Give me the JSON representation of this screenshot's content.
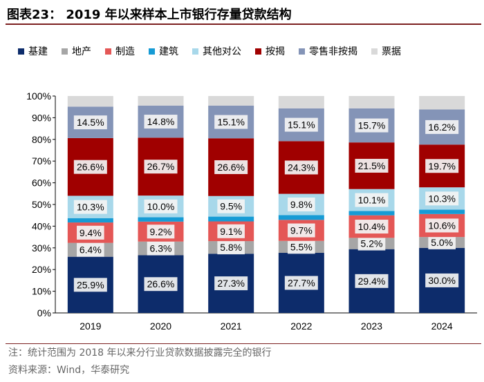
{
  "title": "图表23：  2019 年以来样本上市银行存量贷款结构",
  "note": "注：统计范围为 2018 年以来分行业贷款数据披露完全的银行",
  "source": "资料来源：Wind，华泰研究",
  "chart_data": {
    "type": "bar",
    "stacked": true,
    "categories": [
      "2019",
      "2020",
      "2021",
      "2022",
      "2023",
      "2024"
    ],
    "ylim": [
      0,
      100
    ],
    "yticks": [
      "0%",
      "10%",
      "20%",
      "30%",
      "40%",
      "50%",
      "60%",
      "70%",
      "80%",
      "90%",
      "100%"
    ],
    "legend_position": "top",
    "series": [
      {
        "name": "基建",
        "color": "#0d2c6b",
        "values": [
          25.9,
          26.6,
          27.3,
          27.7,
          29.4,
          30.0
        ],
        "labels": [
          "25.9%",
          "26.6%",
          "27.3%",
          "27.7%",
          "29.4%",
          "30.0%"
        ]
      },
      {
        "name": "地产",
        "color": "#a6a6a6",
        "values": [
          6.4,
          6.3,
          5.8,
          5.5,
          5.2,
          5.0
        ],
        "labels": [
          "6.4%",
          "6.3%",
          "5.8%",
          "5.5%",
          "5.2%",
          "5.0%"
        ]
      },
      {
        "name": "制造",
        "color": "#e45756",
        "values": [
          9.4,
          9.2,
          9.1,
          9.7,
          10.4,
          10.6
        ],
        "labels": [
          "9.4%",
          "9.2%",
          "9.1%",
          "9.7%",
          "10.4%",
          "10.6%"
        ]
      },
      {
        "name": "建筑",
        "color": "#169bd5",
        "values": [
          2.0,
          2.0,
          2.2,
          2.2,
          2.0,
          2.0
        ],
        "labels": null
      },
      {
        "name": "其他对公",
        "color": "#a8d8ea",
        "values": [
          10.3,
          10.0,
          9.5,
          9.8,
          10.1,
          10.3
        ],
        "labels": [
          "10.3%",
          "10.0%",
          "9.5%",
          "9.8%",
          "10.1%",
          "10.3%"
        ]
      },
      {
        "name": "按揭",
        "color": "#a00000",
        "values": [
          26.6,
          26.7,
          26.6,
          24.3,
          21.5,
          19.7
        ],
        "labels": [
          "26.6%",
          "26.7%",
          "26.6%",
          "24.3%",
          "21.5%",
          "19.7%"
        ]
      },
      {
        "name": "零售非按揭",
        "color": "#8494b7",
        "values": [
          14.5,
          14.8,
          15.1,
          15.1,
          15.7,
          16.2
        ],
        "labels": [
          "14.5%",
          "14.8%",
          "15.1%",
          "15.1%",
          "15.7%",
          "16.2%"
        ]
      },
      {
        "name": "票据",
        "color": "#d9d9d9",
        "values": [
          4.9,
          4.4,
          4.4,
          5.7,
          5.7,
          6.2
        ],
        "labels": null
      }
    ]
  }
}
